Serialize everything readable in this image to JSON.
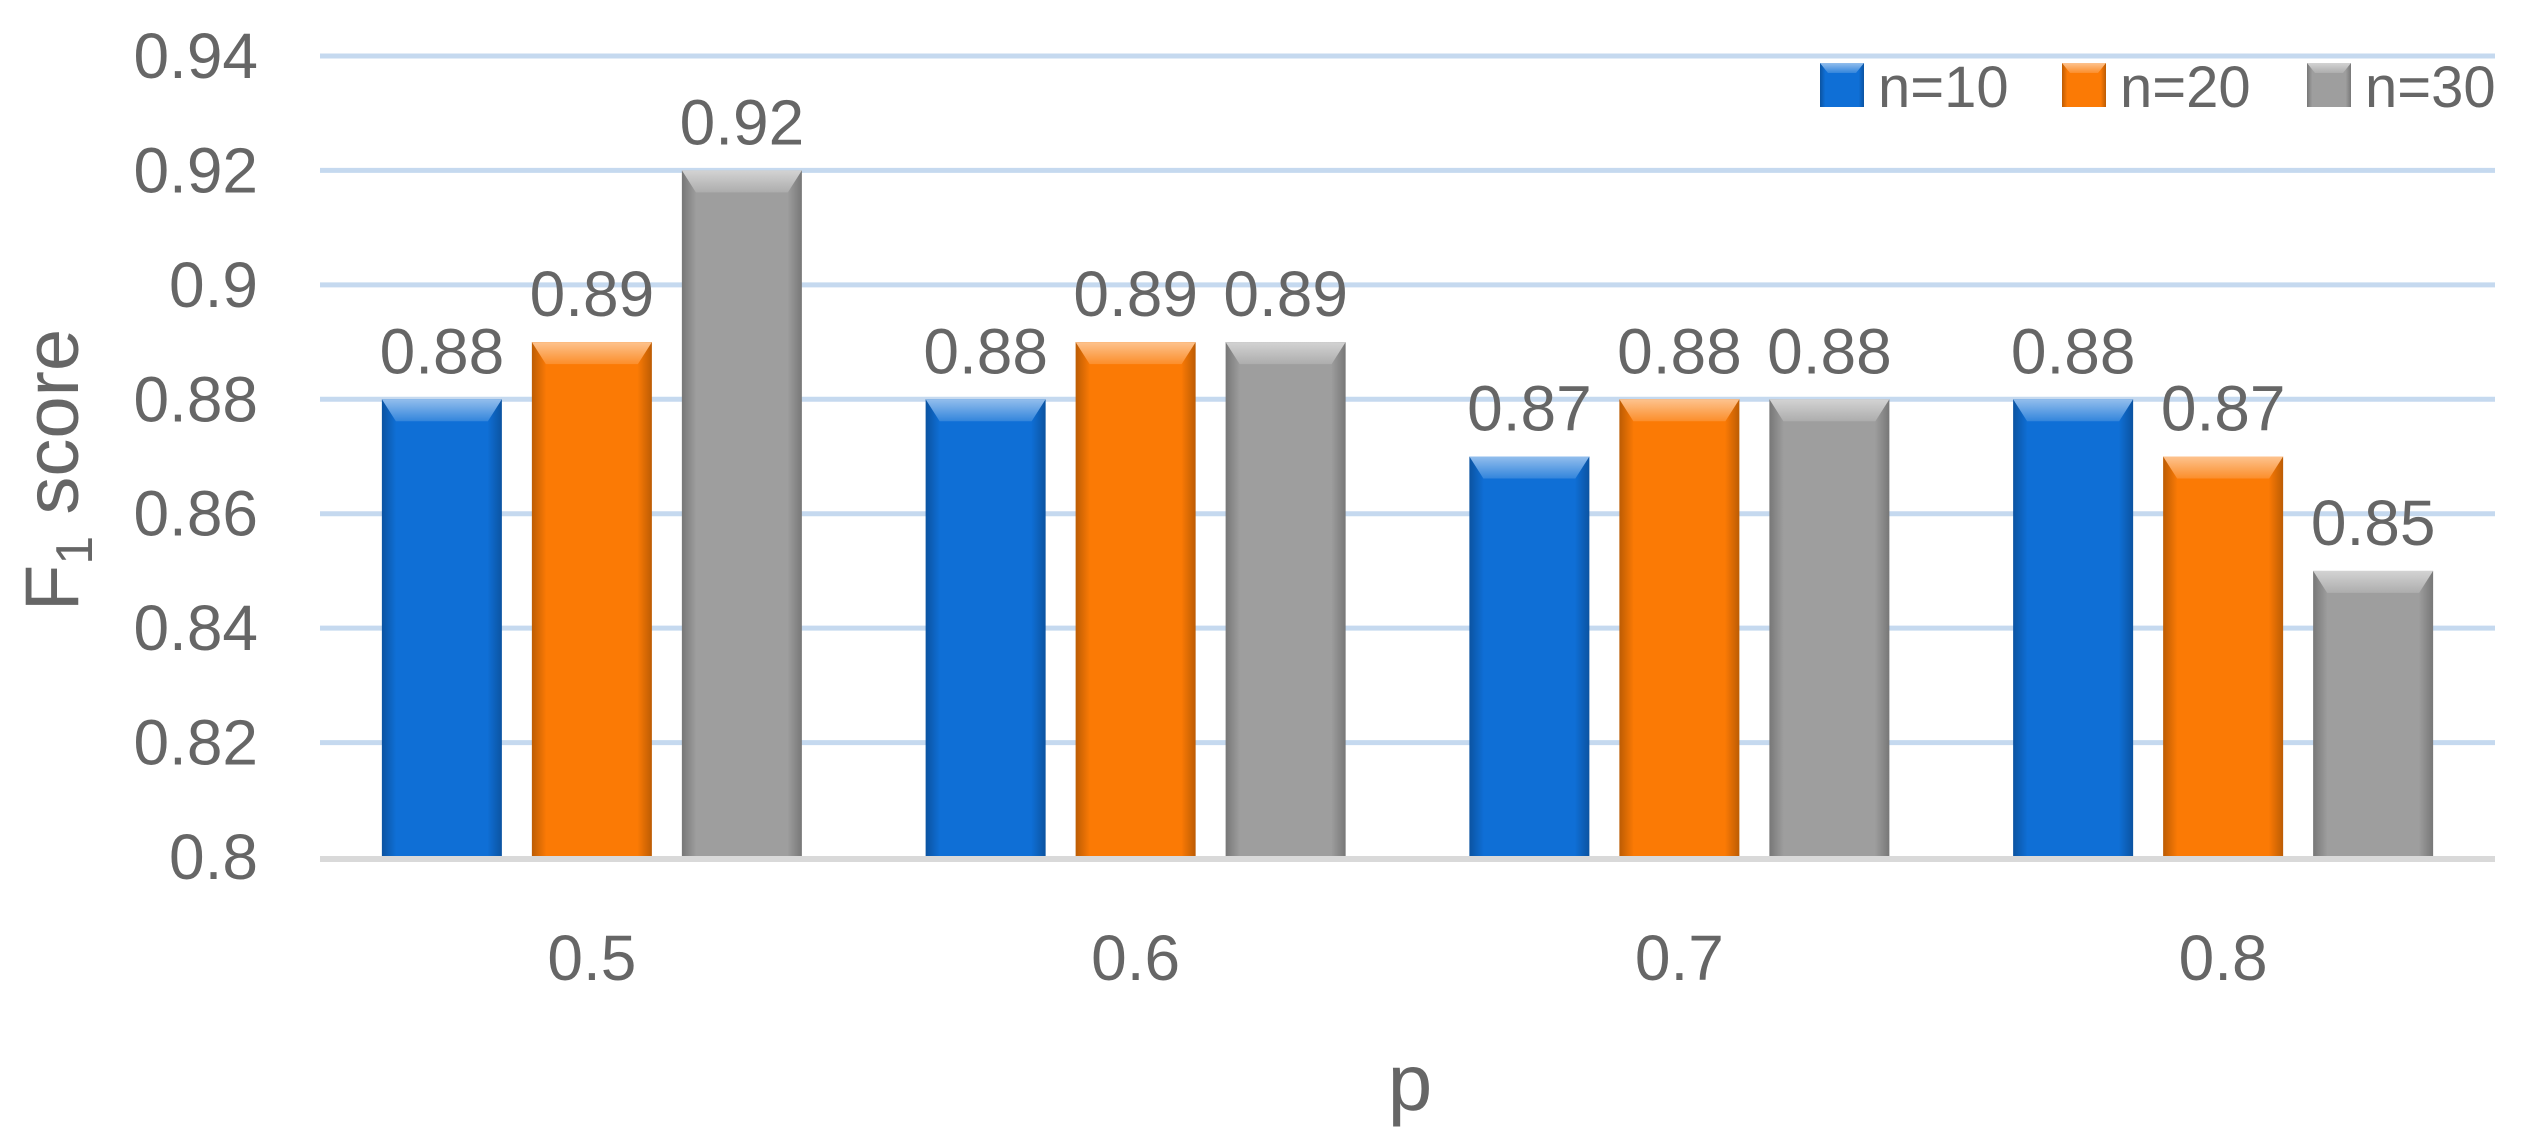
{
  "chart_data": {
    "type": "bar",
    "title": "",
    "xlabel": "p",
    "ylabel_main": "F",
    "ylabel_sub": "1",
    "ylabel_rest": " score",
    "categories": [
      "0.5",
      "0.6",
      "0.7",
      "0.8"
    ],
    "series": [
      {
        "name": "n=10",
        "values": [
          0.88,
          0.88,
          0.87,
          0.88
        ],
        "value_labels": [
          "0.88",
          "0.88",
          "0.87",
          "0.88"
        ],
        "color": "#0f6fd6"
      },
      {
        "name": "n=20",
        "values": [
          0.89,
          0.89,
          0.88,
          0.87
        ],
        "value_labels": [
          "0.89",
          "0.89",
          "0.88",
          "0.87"
        ],
        "color": "#fb7a05"
      },
      {
        "name": "n=30",
        "values": [
          0.92,
          0.89,
          0.88,
          0.85
        ],
        "value_labels": [
          "0.92",
          "0.89",
          "0.88",
          "0.85"
        ],
        "color": "#9e9e9e"
      }
    ],
    "ylim": [
      0.8,
      0.94
    ],
    "yticks": [
      0.8,
      0.82,
      0.84,
      0.86,
      0.88,
      0.9,
      0.92,
      0.94
    ],
    "ytick_labels": [
      "0.8",
      "0.82",
      "0.84",
      "0.86",
      "0.88",
      "0.9",
      "0.92",
      "0.94"
    ],
    "grid": true,
    "gridline_color": "#c5d9ef",
    "axis_line_color": "#d9d9d9",
    "text_color": "#666666",
    "legend_position": "top-right"
  }
}
